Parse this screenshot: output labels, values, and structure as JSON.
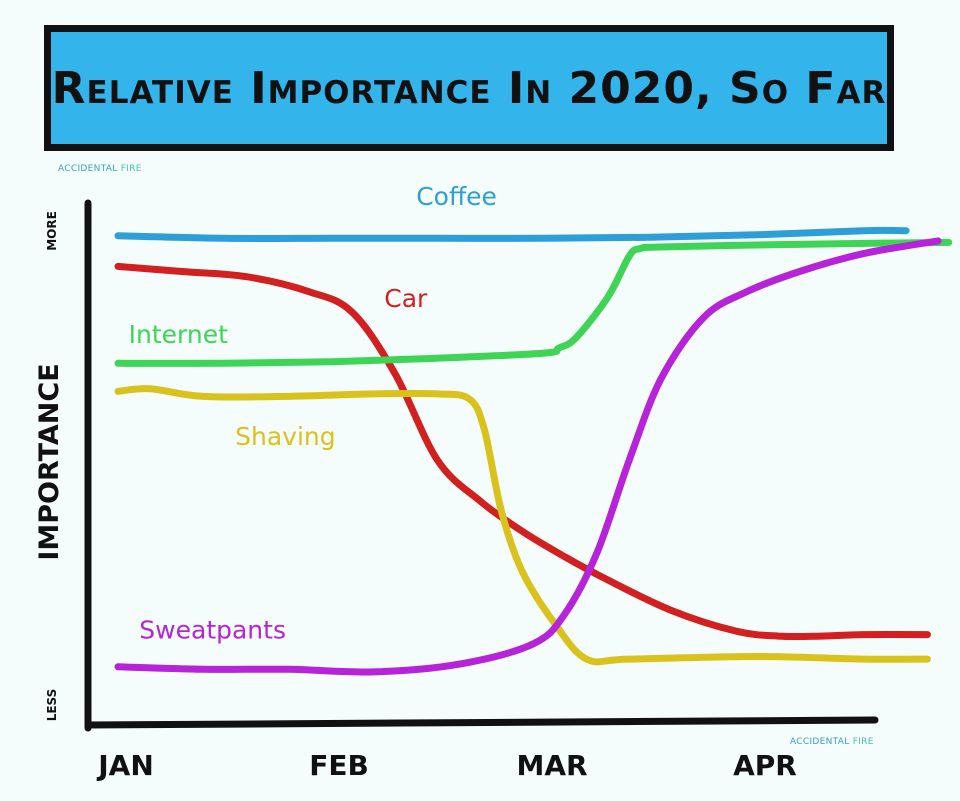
{
  "chart_data": {
    "type": "line",
    "title": "Relative Importance In 2020, So Far",
    "xlabel": "",
    "ylabel": "Importance",
    "y_axis_top": "More",
    "y_axis_bottom": "Less",
    "categories": [
      "Jan",
      "Feb",
      "Mar",
      "Apr"
    ],
    "x_range": [
      0,
      3.9
    ],
    "ylim": [
      0,
      100
    ],
    "grid": false,
    "legend": "inline labels",
    "series": [
      {
        "name": "Coffee",
        "color": "#2d9fd6",
        "label_at": [
          1.4,
          98
        ],
        "x": [
          0,
          0.5,
          1,
          1.5,
          2,
          2.5,
          3,
          3.5,
          3.7
        ],
        "y": [
          92,
          91.5,
          91.5,
          91.5,
          91.5,
          91.7,
          92.2,
          93,
          93
        ]
      },
      {
        "name": "Car",
        "color": "#d21f1f",
        "label_at": [
          1.25,
          78
        ],
        "x": [
          0,
          0.3,
          0.6,
          0.9,
          1.1,
          1.3,
          1.5,
          1.7,
          1.9,
          2.1,
          2.3,
          2.6,
          2.9,
          3.1,
          3.3,
          3.5,
          3.8
        ],
        "y": [
          86,
          85,
          84,
          81,
          77,
          65,
          48,
          40,
          34,
          29,
          24.5,
          18.5,
          14.5,
          13.5,
          13.5,
          13.8,
          13.8
        ]
      },
      {
        "name": "Internet",
        "color": "#3fd455",
        "label_at": [
          0.05,
          71
        ],
        "x": [
          0,
          0.5,
          1,
          1.5,
          2,
          2.07,
          2.15,
          2.3,
          2.4,
          2.45,
          2.55,
          3,
          3.5,
          3.9
        ],
        "y": [
          67,
          67,
          67.3,
          68,
          69,
          70,
          72,
          80,
          88,
          89.5,
          89.8,
          90.2,
          90.5,
          90.7
        ]
      },
      {
        "name": "Shaving",
        "color": "#d9c21c",
        "label_at": [
          0.55,
          51
        ],
        "x": [
          0,
          0.15,
          0.4,
          0.8,
          1.2,
          1.5,
          1.65,
          1.72,
          1.8,
          1.9,
          2.05,
          2.2,
          2.4,
          3,
          3.5,
          3.8
        ],
        "y": [
          61.5,
          62,
          60.5,
          60.5,
          61,
          61,
          60,
          54,
          38,
          26,
          16,
          9,
          9,
          9.5,
          9,
          9
        ]
      },
      {
        "name": "Sweatpants",
        "color": "#b623d8",
        "label_at": [
          0.1,
          13
        ],
        "x": [
          0,
          0.4,
          0.8,
          1.2,
          1.6,
          1.95,
          2.1,
          2.25,
          2.4,
          2.55,
          2.75,
          2.95,
          3.2,
          3.5,
          3.85
        ],
        "y": [
          7.5,
          7,
          7,
          6.5,
          8,
          12,
          18,
          30,
          48,
          64,
          76,
          81,
          85,
          88.5,
          91
        ]
      }
    ]
  },
  "credits": {
    "top_brand": "ACCIDENTAL",
    "top_fire": "FIRE",
    "bottom_brand": "ACCIDENTAL",
    "bottom_fire": "FIRE"
  }
}
